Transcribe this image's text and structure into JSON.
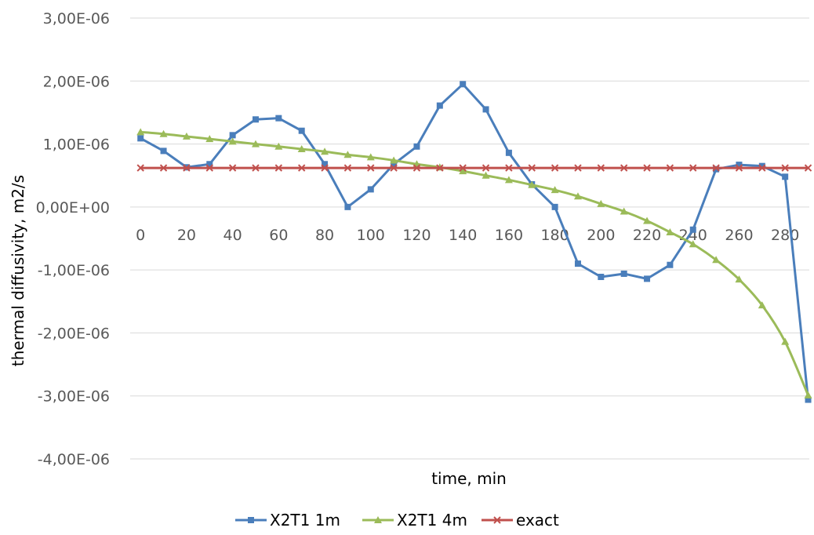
{
  "chart_data": {
    "type": "line",
    "title": "",
    "xlabel": "time, min",
    "ylabel": "thermal diffusivity, m2/s",
    "x": [
      0,
      10,
      20,
      30,
      40,
      50,
      60,
      70,
      80,
      90,
      100,
      110,
      120,
      130,
      140,
      150,
      160,
      170,
      180,
      190,
      200,
      210,
      220,
      230,
      240,
      250,
      260,
      270,
      280,
      290
    ],
    "x_tick_labels": [
      "0",
      "20",
      "40",
      "60",
      "80",
      "100",
      "120",
      "140",
      "160",
      "180",
      "200",
      "220",
      "240",
      "260",
      "280"
    ],
    "x_ticks": [
      0,
      20,
      40,
      60,
      80,
      100,
      120,
      140,
      160,
      180,
      200,
      220,
      240,
      260,
      280
    ],
    "y_ticks": [
      3e-06,
      2e-06,
      1e-06,
      0,
      -1e-06,
      -2e-06,
      -3e-06,
      -4e-06
    ],
    "y_tick_labels": [
      "3,00E-06",
      "2,00E-06",
      "1,00E-06",
      "0,00E+00",
      "-1,00E-06",
      "-2,00E-06",
      "-3,00E-06",
      "-4,00E-06"
    ],
    "ylim": [
      -4e-06,
      3e-06
    ],
    "grid": true,
    "legend_position": "bottom",
    "series": [
      {
        "name": "X2T1 1m",
        "color": "#4a7ebb",
        "marker": "square",
        "values": [
          1.09e-06,
          8.9e-07,
          6.3e-07,
          6.8e-07,
          1.14e-06,
          1.39e-06,
          1.41e-06,
          1.21e-06,
          6.8e-07,
          0.0,
          2.8e-07,
          6.8e-07,
          9.6e-07,
          1.61e-06,
          1.95e-06,
          1.55e-06,
          8.6e-07,
          3.6e-07,
          0.0,
          -9e-07,
          -1.11e-06,
          -1.06e-06,
          -1.14e-06,
          -9.2e-07,
          -3.6e-07,
          6e-07,
          6.7e-07,
          6.5e-07,
          4.8e-07,
          -3.06e-06
        ]
      },
      {
        "name": "X2T1 4m",
        "color": "#9bbb59",
        "marker": "triangle",
        "values": [
          1.19e-06,
          1.16e-06,
          1.12e-06,
          1.08e-06,
          1.04e-06,
          1e-06,
          9.6e-07,
          9.2e-07,
          8.8e-07,
          8.3e-07,
          7.9e-07,
          7.4e-07,
          6.8e-07,
          6.3e-07,
          5.7e-07,
          5e-07,
          4.3e-07,
          3.5e-07,
          2.7e-07,
          1.7e-07,
          5e-08,
          -7e-08,
          -2.2e-07,
          -4e-07,
          -5.9e-07,
          -8.4e-07,
          -1.15e-06,
          -1.56e-06,
          -2.14e-06,
          -2.99e-06
        ]
      },
      {
        "name": "exact",
        "color": "#c0504d",
        "marker": "x",
        "values": [
          6.2e-07,
          6.2e-07,
          6.2e-07,
          6.2e-07,
          6.2e-07,
          6.2e-07,
          6.2e-07,
          6.2e-07,
          6.2e-07,
          6.2e-07,
          6.2e-07,
          6.2e-07,
          6.2e-07,
          6.2e-07,
          6.2e-07,
          6.2e-07,
          6.2e-07,
          6.2e-07,
          6.2e-07,
          6.2e-07,
          6.2e-07,
          6.2e-07,
          6.2e-07,
          6.2e-07,
          6.2e-07,
          6.2e-07,
          6.2e-07,
          6.2e-07,
          6.2e-07,
          6.2e-07
        ]
      }
    ]
  }
}
